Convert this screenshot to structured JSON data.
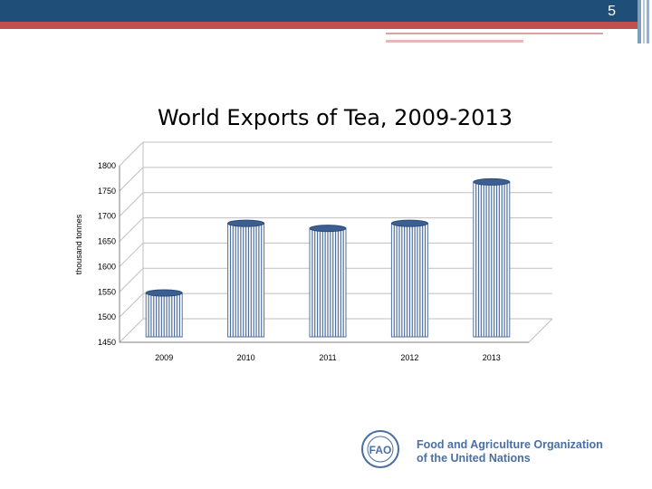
{
  "slide": {
    "page_number": "5"
  },
  "chart_data": {
    "type": "bar",
    "title": "World Exports of Tea, 2009-2013",
    "xlabel": "",
    "ylabel": "thousand tonnes",
    "categories": [
      "2009",
      "2010",
      "2011",
      "2012",
      "2013"
    ],
    "values": [
      1555,
      1693,
      1683,
      1693,
      1775
    ],
    "ylim": [
      1450,
      1800
    ],
    "yticks": [
      1450,
      1500,
      1550,
      1600,
      1650,
      1700,
      1750,
      1800
    ],
    "grid": true,
    "legend": "none",
    "bar_color": "#4f6fa0"
  },
  "footer": {
    "org_line1": "Food and Agriculture Organization",
    "org_line2": "of the United Nations",
    "logo_icon": "fao-logo-icon"
  }
}
